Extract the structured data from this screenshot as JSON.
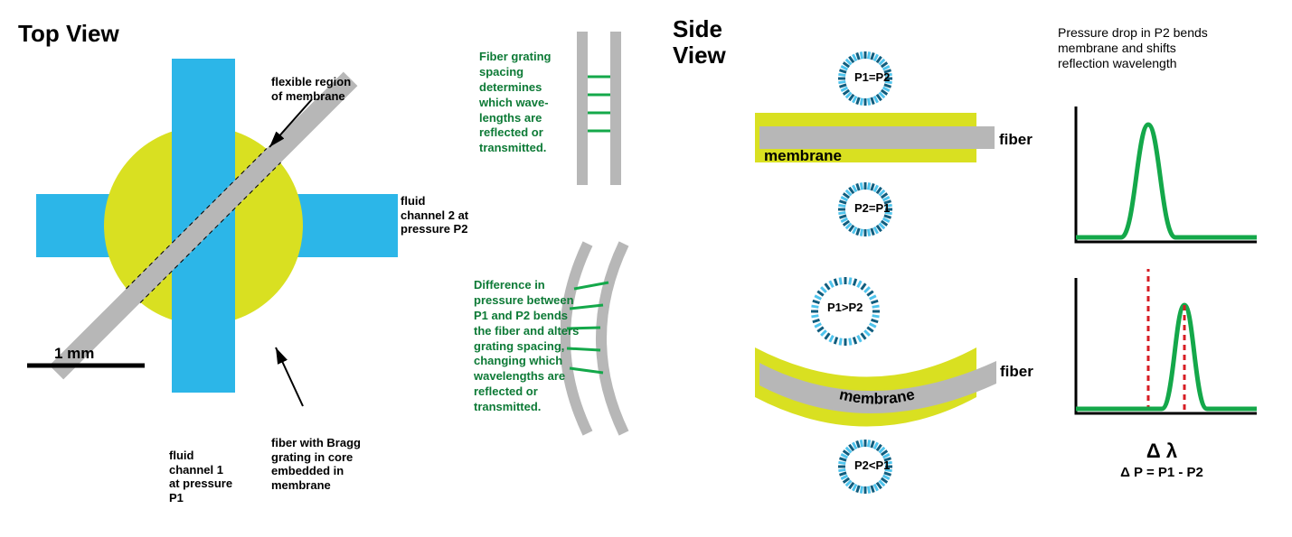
{
  "colors": {
    "blue": "#2cb6e8",
    "yellow": "#d9e021",
    "gray": "#b7b7b7",
    "green": "#14a84a",
    "darkgreen": "#0d7a36",
    "red": "#d71d24",
    "black": "#000000",
    "tickDark": "#105d7e",
    "tickLight": "#4fc4ed"
  },
  "headings": {
    "top": "Top View",
    "side": "Side\nView",
    "scale": "1 mm"
  },
  "topview": {
    "membrane_label": "flexible region\nof membrane",
    "channel1": "fluid\nchannel 1\nat pressure\nP1",
    "channel2": "fluid\nchannel 2 at\npressure P2",
    "fiber_label": "fiber with Bragg\ngrating in core\nembedded in\nmembrane"
  },
  "fiberblocks": {
    "straight": "Fiber grating\nspacing\ndetermines\nwhich wave-\nlengths are\nreflected or\ntransmitted.",
    "bent": "Difference in\npressure between\nP1 and P2 bends\nthe fiber and alters\ngrating spacing,\nchanging which\nwavelengths are\nreflected or\ntransmitted."
  },
  "sideview": {
    "p1eqp2": "P1=P2",
    "p2eqp1": "P2=P1",
    "p1gtp2": "P1>P2",
    "p2ltp1": "P2<P1",
    "fiber": "fiber",
    "membrane": "membrane",
    "membrane2": "membrane"
  },
  "plots": {
    "title": "Pressure drop in P2 bends\nmembrane and shifts\nreflection wavelength",
    "delta_lambda": "Δ λ",
    "delta_p": "Δ P = P1 - P2"
  }
}
